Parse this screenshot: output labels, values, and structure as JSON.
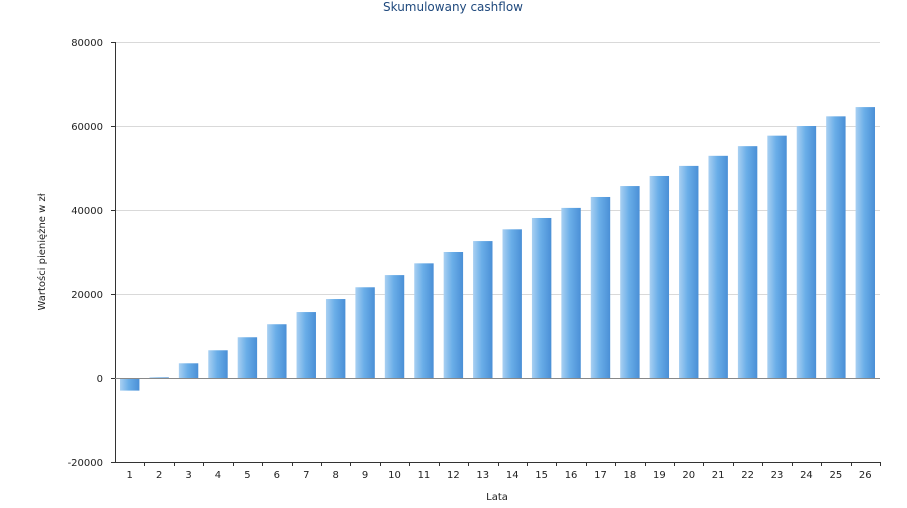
{
  "chart_data": {
    "type": "bar",
    "title": "Skumulowany cashflow",
    "xlabel": "Lata",
    "ylabel": "Wartości pieniężne w zł",
    "ylim": [
      -20000,
      80000
    ],
    "yticks": [
      -20000,
      0,
      20000,
      40000,
      60000,
      80000
    ],
    "grid": true,
    "categories": [
      "1",
      "2",
      "3",
      "4",
      "5",
      "6",
      "7",
      "8",
      "9",
      "10",
      "11",
      "12",
      "13",
      "14",
      "15",
      "16",
      "17",
      "18",
      "19",
      "20",
      "21",
      "22",
      "23",
      "24",
      "25",
      "26"
    ],
    "series": [
      {
        "name": "Skumulowany cashflow",
        "color": "#6aaee8",
        "values": [
          -3000,
          150,
          3500,
          6600,
          9700,
          12800,
          15700,
          18800,
          21600,
          24500,
          27300,
          30000,
          32600,
          35400,
          38100,
          40500,
          43100,
          45700,
          48100,
          50500,
          52900,
          55200,
          57700,
          60000,
          62300,
          64500
        ]
      }
    ]
  }
}
